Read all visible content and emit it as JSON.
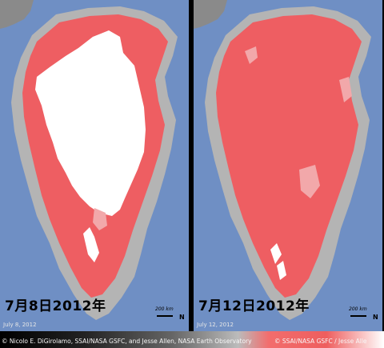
{
  "panels": [
    {
      "caption": "7月8日2012年",
      "date_label": "July 8, 2012",
      "scale_label": "200 km",
      "north_label": "N"
    },
    {
      "caption": "7月12日2012年",
      "date_label": "July 12, 2012",
      "scale_label": "200 km",
      "north_label": "N"
    }
  ],
  "credit_left": "© Nicolo E. DiGirolamo, SSAI/NASA GSFC, and Jesse Allen, NASA Earth Observatory",
  "credit_right": "© SSAI/NASA GSFC / Jesse Alle",
  "colors": {
    "ocean": "#6f8fc4",
    "land": "#b4b4b4",
    "melt": "#ee5e62",
    "ice": "#ffffff",
    "probable_melt": "#f2a8aa"
  }
}
